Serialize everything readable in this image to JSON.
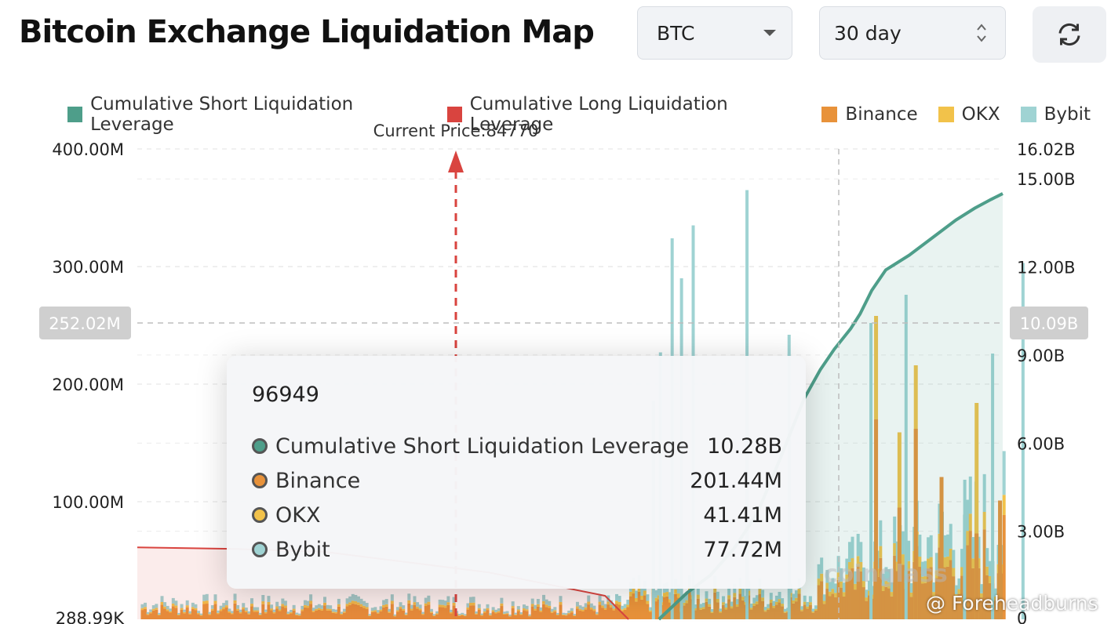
{
  "header": {
    "title": "Bitcoin Exchange Liquidation Map"
  },
  "controls": {
    "coin": {
      "value": "BTC"
    },
    "range": {
      "value": "30 day"
    }
  },
  "colors": {
    "short": "#4e9e8a",
    "long": "#d9443f",
    "binance": "#e8923a",
    "okx": "#f2c24a",
    "bybit": "#9fd3d3"
  },
  "chart_data": {
    "type": "bar",
    "title": "Bitcoin Exchange Liquidation Map",
    "current_price_label": "Current Price:84770",
    "legend": [
      "Cumulative Short Liquidation Leverage",
      "Cumulative Long Liquidation Leverage",
      "Binance",
      "OKX",
      "Bybit"
    ],
    "y_left": {
      "ticks": [
        "400.00M",
        "300.00M",
        "200.00M",
        "100.00M",
        "288.99K"
      ],
      "range": [
        0,
        400
      ],
      "unit": "M"
    },
    "y_right": {
      "ticks": [
        "16.02B",
        "15.00B",
        "12.00B",
        "9.00B",
        "6.00B",
        "3.00B",
        "0"
      ],
      "range": [
        0,
        16.02
      ],
      "unit": "B"
    },
    "crosshair": {
      "left_label": "252.02M",
      "right_label": "10.09B",
      "left_value": 252.02
    },
    "cumulative_short": [
      [
        97300,
        0.0
      ],
      [
        98500,
        0.9
      ],
      [
        99500,
        1.5
      ],
      [
        100500,
        2.4
      ],
      [
        101500,
        3.6
      ],
      [
        102500,
        5.5
      ],
      [
        103500,
        7.5
      ],
      [
        104200,
        8.5
      ],
      [
        104800,
        9.2
      ],
      [
        105500,
        9.9
      ],
      [
        105900,
        10.4
      ],
      [
        106400,
        11.2
      ],
      [
        107000,
        11.9
      ],
      [
        108000,
        12.4
      ],
      [
        109000,
        13.0
      ],
      [
        110000,
        13.6
      ],
      [
        110800,
        14.0
      ],
      [
        111500,
        14.3
      ],
      [
        112000,
        14.5
      ]
    ],
    "cumulative_long": [
      [
        75000,
        2.45
      ],
      [
        79000,
        2.4
      ],
      [
        83000,
        2.3
      ],
      [
        85000,
        2.1
      ],
      [
        90000,
        1.6
      ],
      [
        95000,
        0.8
      ],
      [
        96000,
        0.0
      ]
    ],
    "bybit_spikes": [
      [
        97000,
        186
      ],
      [
        97300,
        227
      ],
      [
        97800,
        324
      ],
      [
        98200,
        290
      ],
      [
        98700,
        335
      ],
      [
        101000,
        365
      ],
      [
        102800,
        242
      ],
      [
        106300,
        252
      ],
      [
        107800,
        276
      ],
      [
        110300,
        89
      ],
      [
        111500,
        226
      ],
      [
        112800,
        303
      ]
    ],
    "binance_spikes": [
      [
        106500,
        170
      ],
      [
        107500,
        95
      ],
      [
        108200,
        162
      ],
      [
        109300,
        121
      ],
      [
        110800,
        73
      ],
      [
        111800,
        101
      ]
    ],
    "okx_spikes": [
      [
        106500,
        258
      ],
      [
        107500,
        159
      ],
      [
        108200,
        216
      ],
      [
        110800,
        184
      ]
    ]
  },
  "tooltip": {
    "title": "96949",
    "rows": [
      {
        "label": "Cumulative Short Liquidation Leverage",
        "value": "10.28B"
      },
      {
        "label": "Binance",
        "value": "201.44M"
      },
      {
        "label": "OKX",
        "value": "41.41M"
      },
      {
        "label": "Bybit",
        "value": "77.72M"
      }
    ]
  },
  "watermark": "coinglass",
  "credit": "@ Foreheadburns"
}
